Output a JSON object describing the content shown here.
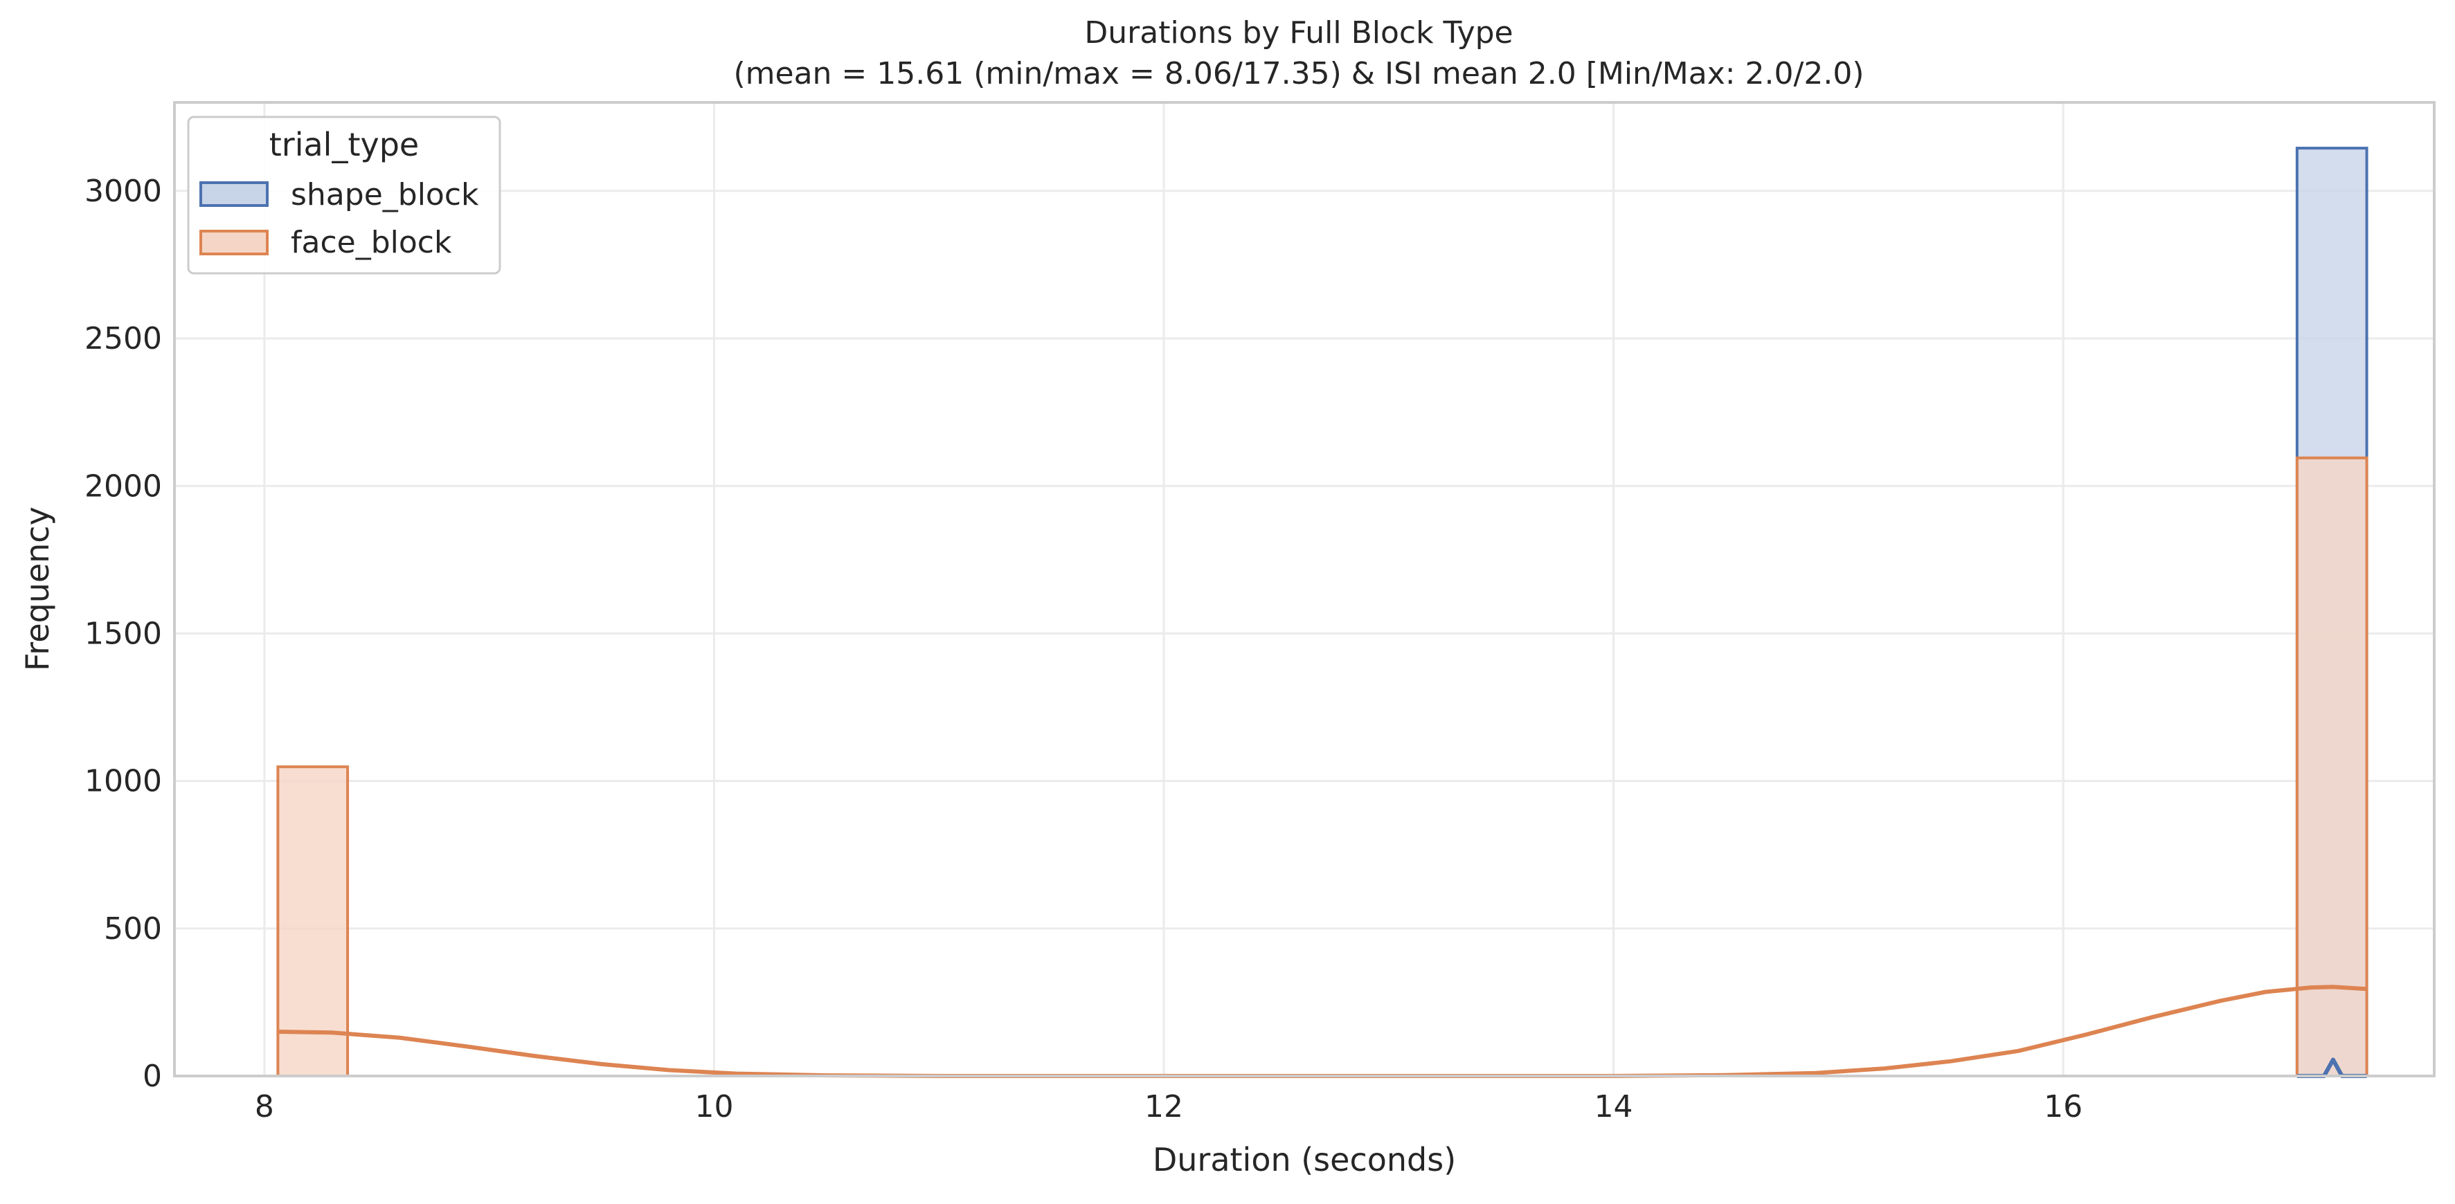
{
  "chart_data": {
    "type": "histogram",
    "title_line1": "Durations by Full Block Type",
    "title_line2": "(mean = 15.61 (min/max = 8.06/17.35) & ISI mean 2.0 [Min/Max: 2.0/2.0)",
    "xlabel": "Duration (seconds)",
    "ylabel": "Frequency",
    "xlim": [
      7.6,
      17.65
    ],
    "ylim": [
      0,
      3300
    ],
    "xticks": [
      8,
      10,
      12,
      14,
      16
    ],
    "yticks": [
      0,
      500,
      1000,
      1500,
      2000,
      2500,
      3000
    ],
    "grid": true,
    "legend": {
      "title": "trial_type",
      "placement": "top-left",
      "entries": [
        "shape_block",
        "face_block"
      ]
    },
    "series": [
      {
        "name": "shape_block",
        "color": "#4c72b0",
        "fill": "#c8d4e8",
        "bins": [
          {
            "x0": 17.04,
            "x1": 17.35,
            "count": 3145
          }
        ],
        "kde": [
          [
            17.04,
            0
          ],
          [
            17.16,
            0
          ],
          [
            17.2,
            55
          ],
          [
            17.24,
            0
          ],
          [
            17.35,
            0
          ]
        ]
      },
      {
        "name": "face_block",
        "color": "#dd8452",
        "fill": "#f5d6c6",
        "bins": [
          {
            "x0": 8.06,
            "x1": 8.37,
            "count": 1048
          },
          {
            "x0": 17.04,
            "x1": 17.35,
            "count": 2095
          }
        ],
        "kde": [
          [
            8.06,
            150
          ],
          [
            8.3,
            147
          ],
          [
            8.6,
            130
          ],
          [
            8.9,
            100
          ],
          [
            9.2,
            68
          ],
          [
            9.5,
            40
          ],
          [
            9.8,
            20
          ],
          [
            10.1,
            8
          ],
          [
            10.5,
            2
          ],
          [
            11,
            0
          ],
          [
            14,
            0
          ],
          [
            14.5,
            3
          ],
          [
            14.9,
            10
          ],
          [
            15.2,
            25
          ],
          [
            15.5,
            50
          ],
          [
            15.8,
            85
          ],
          [
            16.1,
            140
          ],
          [
            16.4,
            200
          ],
          [
            16.7,
            255
          ],
          [
            16.9,
            285
          ],
          [
            17.1,
            300
          ],
          [
            17.2,
            302
          ],
          [
            17.35,
            295
          ]
        ]
      }
    ]
  }
}
